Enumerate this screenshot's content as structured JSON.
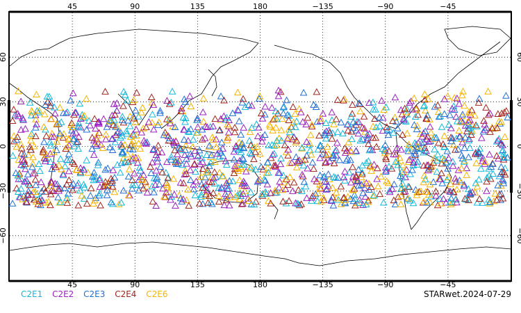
{
  "map": {
    "top_lon_labels": [
      "45",
      "90",
      "135",
      "180",
      "−135",
      "−90",
      "−45"
    ],
    "bottom_lon_labels": [
      "45",
      "90",
      "135",
      "180",
      "−135",
      "−90",
      "−45"
    ],
    "left_lat_labels": [
      "60",
      "30",
      "0",
      "−30",
      "−60"
    ],
    "right_lat_labels": [
      "60",
      "30",
      "0",
      "−30",
      "−60"
    ],
    "lon_ticks_deg": [
      45,
      90,
      135,
      180,
      225,
      270,
      315
    ],
    "lat_ticks_deg": [
      60,
      30,
      0,
      -30,
      -60
    ],
    "lon_range": [
      0,
      360
    ],
    "lat_range": [
      -90,
      90
    ],
    "marker": "open-triangle",
    "coastline_color": "#000000",
    "grid_style": "dotted"
  },
  "legend": [
    {
      "label": "C2E1",
      "color": "#11b9d9"
    },
    {
      "label": "C2E2",
      "color": "#9b1fbf"
    },
    {
      "label": "C2E3",
      "color": "#1f6fd6"
    },
    {
      "label": "C2E4",
      "color": "#a2241c"
    },
    {
      "label": "C2E6",
      "color": "#f5b400"
    }
  ],
  "stamp": "STARwet.2024-07-29"
}
